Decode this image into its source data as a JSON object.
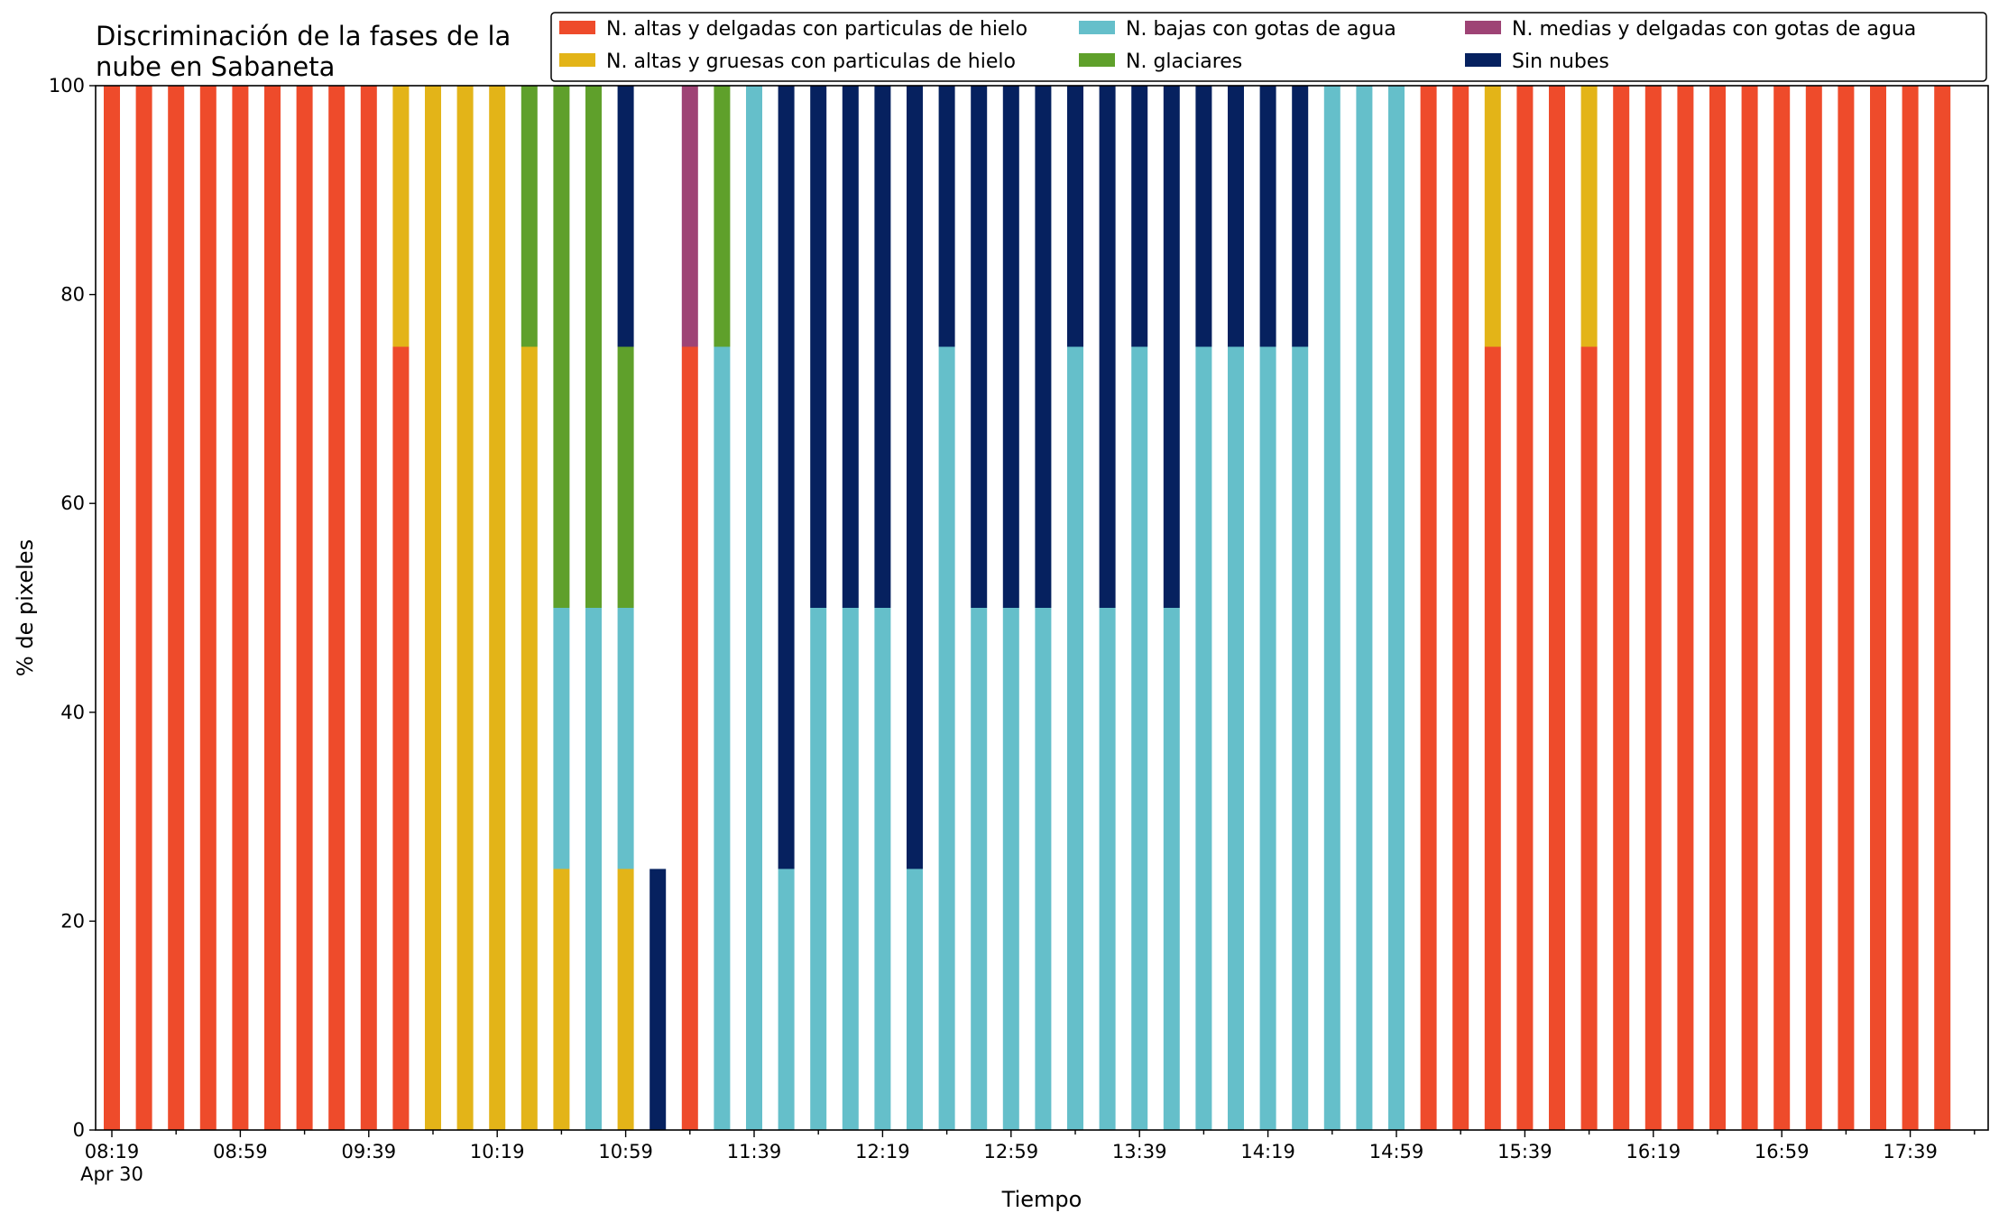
{
  "chart_data": {
    "type": "bar",
    "stacked": true,
    "title_lines": [
      "Discriminación de la fases de la",
      "nube en Sabaneta"
    ],
    "xlabel": "Tiempo",
    "ylabel": "% de pixeles",
    "ylim": [
      0,
      100
    ],
    "yticks": [
      "0",
      "20",
      "40",
      "60",
      "80",
      "100"
    ],
    "xtick_labels": [
      "08:19",
      "08:59",
      "09:39",
      "10:19",
      "10:59",
      "11:39",
      "12:19",
      "12:59",
      "13:39",
      "14:19",
      "14:59",
      "15:39",
      "16:19",
      "16:59",
      "17:39"
    ],
    "xtick_sublabel": "Apr 30",
    "x_start": "08:19",
    "x_step_minutes": 10,
    "legend_position": "top-right",
    "series": [
      {
        "name": "N. altas y delgadas con particulas de hielo",
        "color": "#EE4B2B",
        "values": [
          100,
          100,
          100,
          100,
          100,
          100,
          100,
          100,
          100,
          75,
          0,
          0,
          0,
          0,
          0,
          0,
          0,
          0,
          75,
          0,
          0,
          0,
          0,
          0,
          0,
          0,
          0,
          0,
          0,
          0,
          0,
          0,
          0,
          0,
          0,
          0,
          0,
          0,
          0,
          0,
          0,
          100,
          100,
          75,
          100,
          100,
          75,
          100,
          100,
          100,
          100,
          100,
          100,
          100,
          100,
          100,
          100,
          100
        ]
      },
      {
        "name": "N. altas y gruesas con particulas de hielo",
        "color": "#E3B418",
        "values": [
          0,
          0,
          0,
          0,
          0,
          0,
          0,
          0,
          0,
          25,
          100,
          100,
          100,
          75,
          25,
          0,
          25,
          0,
          0,
          0,
          0,
          0,
          0,
          0,
          0,
          0,
          0,
          0,
          0,
          0,
          0,
          0,
          0,
          0,
          0,
          0,
          0,
          0,
          0,
          0,
          0,
          0,
          0,
          25,
          0,
          0,
          25,
          0,
          0,
          0,
          0,
          0,
          0,
          0,
          0,
          0,
          0,
          0
        ]
      },
      {
        "name": "N. bajas con gotas de agua",
        "color": "#65BFCA",
        "values": [
          0,
          0,
          0,
          0,
          0,
          0,
          0,
          0,
          0,
          0,
          0,
          0,
          0,
          0,
          25,
          50,
          25,
          0,
          0,
          75,
          100,
          25,
          50,
          50,
          50,
          25,
          75,
          50,
          50,
          50,
          75,
          50,
          75,
          50,
          75,
          75,
          75,
          75,
          100,
          100,
          100,
          0,
          0,
          0,
          0,
          0,
          0,
          0,
          0,
          0,
          0,
          0,
          0,
          0,
          0,
          0,
          0,
          0
        ]
      },
      {
        "name": "N. glaciares",
        "color": "#5FA02B",
        "values": [
          0,
          0,
          0,
          0,
          0,
          0,
          0,
          0,
          0,
          0,
          0,
          0,
          0,
          25,
          50,
          50,
          25,
          0,
          0,
          25,
          0,
          0,
          0,
          0,
          0,
          0,
          0,
          0,
          0,
          0,
          0,
          0,
          0,
          0,
          0,
          0,
          0,
          0,
          0,
          0,
          0,
          0,
          0,
          0,
          0,
          0,
          0,
          0,
          0,
          0,
          0,
          0,
          0,
          0,
          0,
          0,
          0,
          0
        ]
      },
      {
        "name": "N. medias y delgadas con gotas de agua",
        "color": "#9E4375",
        "values": [
          0,
          0,
          0,
          0,
          0,
          0,
          0,
          0,
          0,
          0,
          0,
          0,
          0,
          0,
          0,
          0,
          0,
          0,
          25,
          0,
          0,
          0,
          0,
          0,
          0,
          0,
          0,
          0,
          0,
          0,
          0,
          0,
          0,
          0,
          0,
          0,
          0,
          0,
          0,
          0,
          0,
          0,
          0,
          0,
          0,
          0,
          0,
          0,
          0,
          0,
          0,
          0,
          0,
          0,
          0,
          0,
          0,
          0
        ]
      },
      {
        "name": "Sin nubes",
        "color": "#06215F",
        "values": [
          0,
          0,
          0,
          0,
          0,
          0,
          0,
          0,
          0,
          0,
          0,
          0,
          0,
          0,
          0,
          0,
          25,
          25,
          0,
          0,
          0,
          75,
          50,
          50,
          50,
          75,
          25,
          50,
          50,
          50,
          25,
          50,
          25,
          50,
          25,
          25,
          25,
          25,
          0,
          0,
          0,
          0,
          0,
          0,
          0,
          0,
          0,
          0,
          0,
          0,
          0,
          0,
          0,
          0,
          0,
          0,
          0,
          0
        ]
      }
    ],
    "legend_columns": [
      [
        0,
        1
      ],
      [
        2,
        3
      ],
      [
        4,
        5
      ]
    ],
    "stack_order": [
      0,
      1,
      2,
      3,
      4,
      5
    ]
  }
}
